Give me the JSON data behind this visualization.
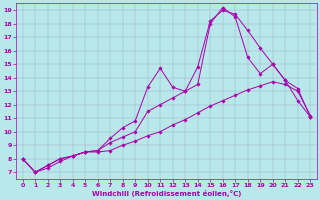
{
  "xlabel": "Windchill (Refroidissement éolien,°C)",
  "background_color": "#b8e8ea",
  "line_color": "#aa00aa",
  "grid_color": "#9999bb",
  "xmin": -0.5,
  "xmax": 23.5,
  "ymin": 6.5,
  "ymax": 19.5,
  "xticks": [
    0,
    1,
    2,
    3,
    4,
    5,
    6,
    7,
    8,
    9,
    10,
    11,
    12,
    13,
    14,
    15,
    16,
    17,
    18,
    19,
    20,
    21,
    22,
    23
  ],
  "yticks": [
    7,
    8,
    9,
    10,
    11,
    12,
    13,
    14,
    15,
    16,
    17,
    18,
    19
  ],
  "line1_x": [
    0,
    1,
    2,
    3,
    4,
    5,
    6,
    7,
    8,
    9,
    10,
    11,
    12,
    13,
    14,
    15,
    16,
    17,
    18,
    19,
    20,
    21,
    22,
    23
  ],
  "line1_y": [
    8.0,
    7.0,
    7.3,
    7.8,
    8.2,
    8.5,
    8.5,
    8.6,
    9.0,
    9.3,
    9.7,
    10.0,
    10.5,
    10.9,
    11.4,
    11.9,
    12.3,
    12.7,
    13.1,
    13.4,
    13.7,
    13.5,
    13.0,
    11.2
  ],
  "line2_x": [
    0,
    1,
    2,
    3,
    4,
    5,
    6,
    7,
    8,
    9,
    10,
    11,
    12,
    13,
    14,
    15,
    16,
    17,
    18,
    19,
    20,
    21,
    22,
    23
  ],
  "line2_y": [
    8.0,
    7.0,
    7.5,
    8.0,
    8.2,
    8.5,
    8.6,
    9.5,
    10.3,
    10.8,
    13.3,
    14.7,
    13.3,
    13.0,
    13.5,
    18.0,
    19.2,
    18.5,
    15.5,
    14.3,
    15.0,
    13.8,
    12.3,
    11.1
  ],
  "line3_x": [
    0,
    1,
    2,
    3,
    4,
    5,
    6,
    7,
    8,
    9,
    10,
    11,
    12,
    13,
    14,
    15,
    16,
    17,
    18,
    19,
    20,
    21,
    22,
    23
  ],
  "line3_y": [
    8.0,
    7.0,
    7.5,
    8.0,
    8.2,
    8.5,
    8.6,
    9.2,
    9.6,
    10.0,
    11.5,
    12.0,
    12.5,
    13.0,
    14.8,
    18.2,
    19.0,
    18.7,
    17.5,
    16.2,
    15.0,
    13.8,
    13.2,
    11.1
  ],
  "marker": "D",
  "marker_size": 1.8,
  "linewidth": 0.7,
  "tick_fontsize": 4.5,
  "xlabel_fontsize": 5.0
}
